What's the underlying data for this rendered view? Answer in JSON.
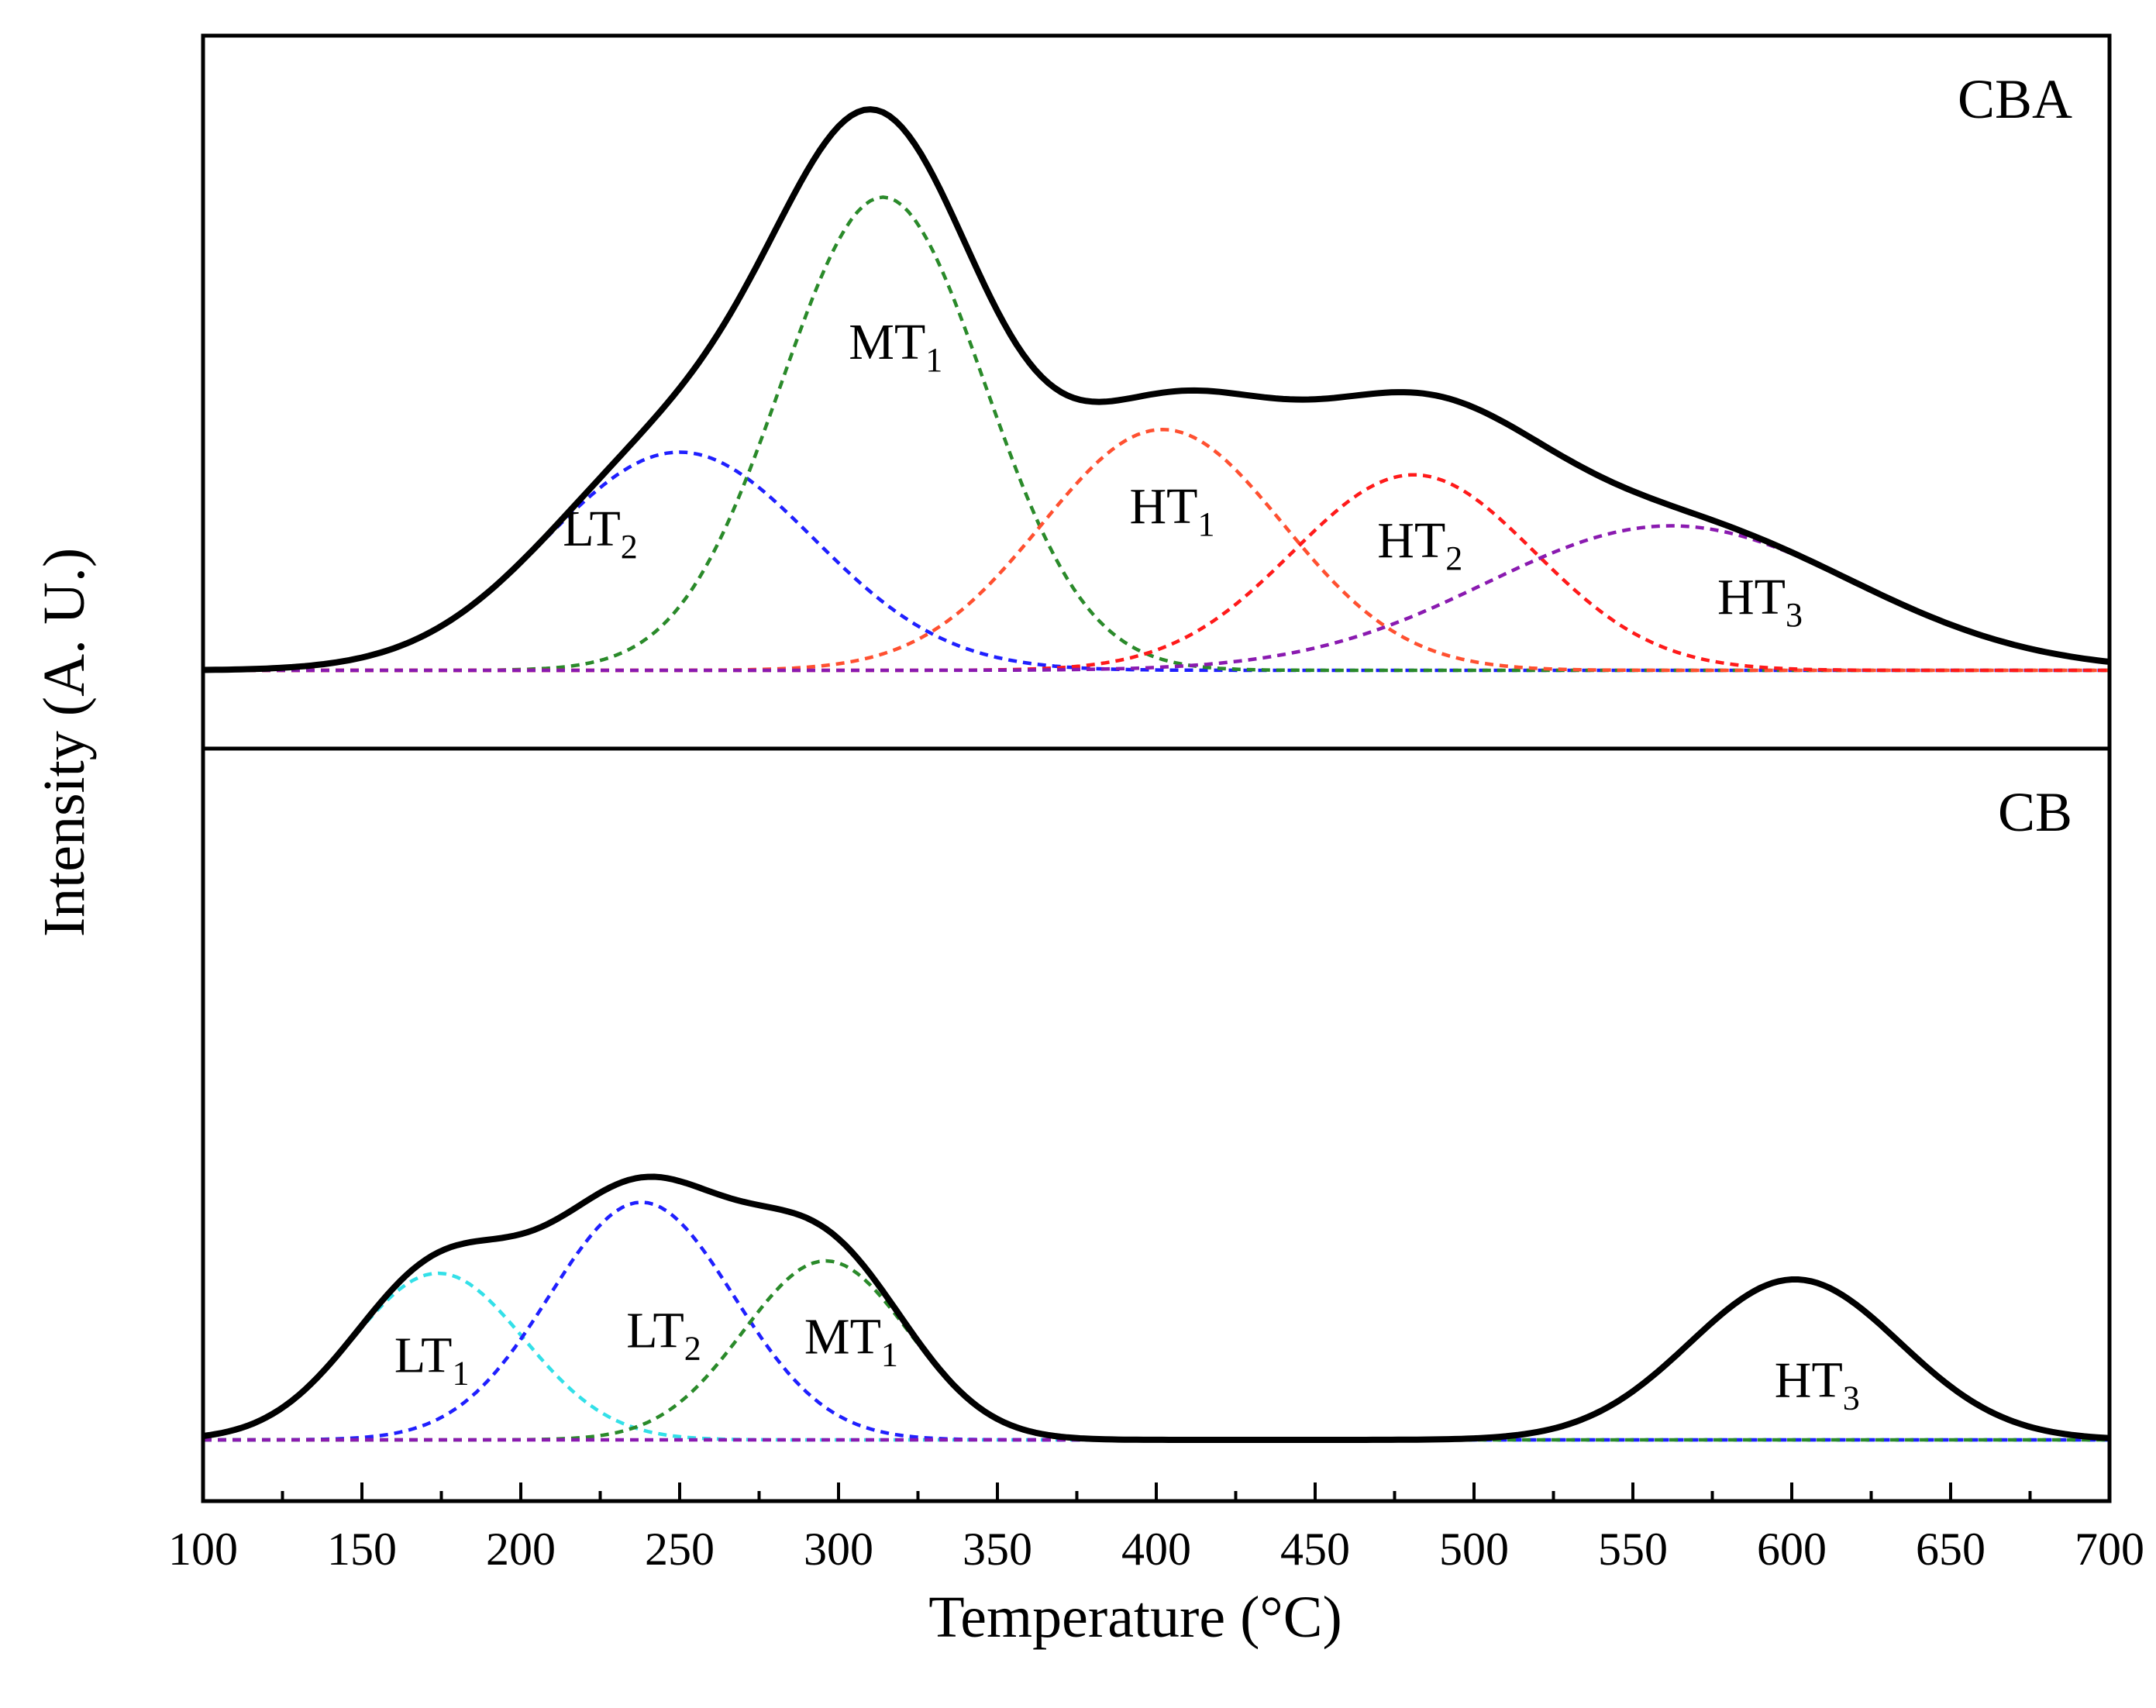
{
  "chart_data": {
    "type": "line",
    "title": "",
    "xlabel": "Temperature (°C)",
    "ylabel": "Intensity (A. U.)",
    "xlim": [
      100,
      700
    ],
    "xticks": [
      100,
      150,
      200,
      250,
      300,
      350,
      400,
      450,
      500,
      550,
      600,
      650,
      700
    ],
    "xtick_labels": [
      "100",
      "150",
      "200",
      "250",
      "300",
      "350",
      "400",
      "450",
      "500",
      "550",
      "600",
      "650",
      "700"
    ],
    "panels": [
      {
        "name": "CBA",
        "title": "CBA",
        "ylim": [
          0,
          1.12
        ],
        "series": [
          {
            "name": "LT2",
            "label": "LT",
            "sub": "2",
            "color": "#1f1fff",
            "center": 250,
            "sigma": 42,
            "height": 0.385,
            "label_at": [
              225,
              0.22
            ]
          },
          {
            "name": "MT1",
            "label": "MT",
            "sub": "1",
            "color": "#2a8a2a",
            "center": 314,
            "sigma": 32,
            "height": 0.835,
            "label_at": [
              318,
              0.55
            ]
          },
          {
            "name": "HT1",
            "label": "HT",
            "sub": "1",
            "color": "#ff5030",
            "center": 402,
            "sigma": 38,
            "height": 0.425,
            "label_at": [
              405,
              0.26
            ]
          },
          {
            "name": "HT2",
            "label": "HT",
            "sub": "2",
            "color": "#ff1a1a",
            "center": 481,
            "sigma": 38,
            "height": 0.345,
            "label_at": [
              483,
              0.2
            ]
          },
          {
            "name": "HT3",
            "label": "HT",
            "sub": "3",
            "color": "#8a1ab0",
            "center": 562,
            "sigma": 58,
            "height": 0.255,
            "label_at": [
              590,
              0.1
            ]
          }
        ],
        "envelope_color": "#000000"
      },
      {
        "name": "CB",
        "title": "CB",
        "ylim": [
          0,
          1.12
        ],
        "series": [
          {
            "name": "LT1",
            "label": "LT",
            "sub": "1",
            "color": "#33e0e8",
            "center": 174,
            "sigma": 27,
            "height": 0.27,
            "label_at": [
              172,
              0.11
            ]
          },
          {
            "name": "LT2",
            "label": "LT",
            "sub": "2",
            "color": "#1f1fff",
            "center": 238,
            "sigma": 29,
            "height": 0.385,
            "label_at": [
              245,
              0.15
            ]
          },
          {
            "name": "MT1",
            "label": "MT",
            "sub": "1",
            "color": "#2a8a2a",
            "center": 296,
            "sigma": 26,
            "height": 0.29,
            "label_at": [
              304,
              0.14
            ]
          },
          {
            "name": "HT3",
            "label": "HT",
            "sub": "3",
            "color": "#8a1ab0",
            "center": 601,
            "sigma": 33,
            "height": 0.26,
            "label_at": [
              608,
              0.07
            ]
          }
        ],
        "envelope_color": "#000000"
      }
    ]
  }
}
